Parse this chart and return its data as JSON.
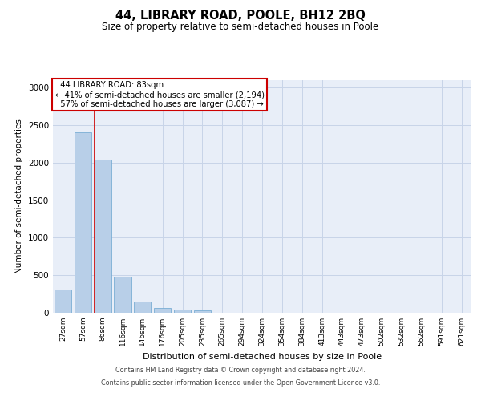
{
  "title": "44, LIBRARY ROAD, POOLE, BH12 2BQ",
  "subtitle": "Size of property relative to semi-detached houses in Poole",
  "xlabel": "Distribution of semi-detached houses by size in Poole",
  "ylabel": "Number of semi-detached properties",
  "categories": [
    "27sqm",
    "57sqm",
    "86sqm",
    "116sqm",
    "146sqm",
    "176sqm",
    "205sqm",
    "235sqm",
    "265sqm",
    "294sqm",
    "324sqm",
    "354sqm",
    "384sqm",
    "413sqm",
    "443sqm",
    "473sqm",
    "502sqm",
    "532sqm",
    "562sqm",
    "591sqm",
    "621sqm"
  ],
  "values": [
    315,
    2410,
    2040,
    480,
    145,
    65,
    45,
    35,
    0,
    0,
    0,
    0,
    0,
    0,
    0,
    0,
    0,
    0,
    0,
    0,
    0
  ],
  "bar_color": "#b8cfe8",
  "bar_edge_color": "#7aadd4",
  "property_line_x": 2,
  "property_line_label": "44 LIBRARY ROAD: 83sqm",
  "pct_smaller": "41%",
  "pct_smaller_count": "2,194",
  "pct_larger": "57%",
  "pct_larger_count": "3,087",
  "annotation_box_color": "#ffffff",
  "annotation_box_edge": "#cc0000",
  "red_line_color": "#cc0000",
  "ylim": [
    0,
    3100
  ],
  "yticks": [
    0,
    500,
    1000,
    1500,
    2000,
    2500,
    3000
  ],
  "grid_color": "#c8d4e8",
  "background_color": "#e8eef8",
  "footer_line1": "Contains HM Land Registry data © Crown copyright and database right 2024.",
  "footer_line2": "Contains public sector information licensed under the Open Government Licence v3.0."
}
